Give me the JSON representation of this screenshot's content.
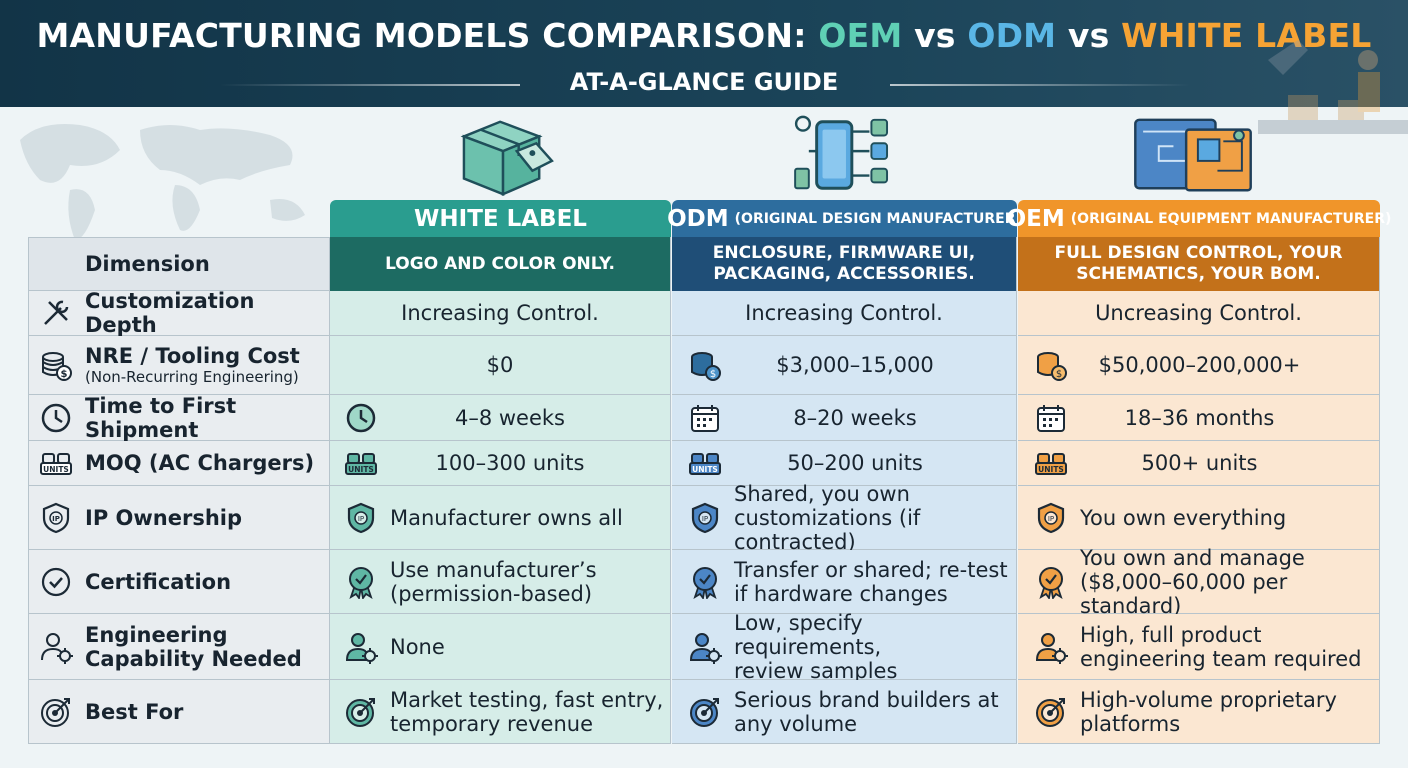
{
  "header": {
    "title_prefix": "MANUFACTURING MODELS COMPARISON: ",
    "title_oem": "OEM",
    "title_vs1": " vs ",
    "title_odm": "ODM",
    "title_vs2": " vs ",
    "title_wl": "WHITE LABEL",
    "subtitle": "AT-A-GLANCE GUIDE"
  },
  "colors": {
    "header_bg": "#123447",
    "white_label": "#2a9d8f",
    "odm": "#2d6d9e",
    "oem": "#f0952a"
  },
  "columns": {
    "white_label": {
      "name": "WHITE LABEL",
      "subtitle": "LOGO AND COLOR ONLY.",
      "icon": "box-with-tag-icon"
    },
    "odm": {
      "name": "ODM",
      "full": "(ORIGINAL DESIGN MANUFACTURER)",
      "subtitle": "ENCLOSURE, FIRMWARE UI, PACKAGING, ACCESSORIES.",
      "icon": "phone-components-icon"
    },
    "oem": {
      "name": "OEM",
      "full": "(ORIGINAL EQUIPMENT MANUFACTURER)",
      "subtitle": "FULL DESIGN CONTROL, YOUR SCHEMATICS, YOUR BOM.",
      "icon": "blueprint-icon"
    }
  },
  "table": {
    "dimension_header": "Dimension",
    "rows": [
      {
        "dimension": "Customization Depth",
        "icon": "tools-icon",
        "white_label": "Increasing Control.",
        "odm": "Increasing Control.",
        "oem": "Uncreasing Control."
      },
      {
        "dimension": "NRE / Tooling Cost",
        "note": "(Non-Recurring Engineering)",
        "icon": "coins-icon",
        "white_label": "$0",
        "odm": "$3,000–15,000",
        "oem": "$50,000–200,000+"
      },
      {
        "dimension": "Time to First Shipment",
        "icon": "clock-icon",
        "white_label": "4–8 weeks",
        "odm": "8–20 weeks",
        "oem": "18–36 months"
      },
      {
        "dimension": "MOQ (AC Chargers)",
        "icon": "units-icon",
        "white_label": "100–300 units",
        "odm": "50–200 units",
        "oem": "500+ units"
      },
      {
        "dimension": "IP Ownership",
        "icon": "shield-ip-icon",
        "white_label": "Manufacturer owns all",
        "odm_1": "Shared, you own",
        "odm_2": "customizations (if contracted)",
        "oem": "You own everything"
      },
      {
        "dimension": "Certification",
        "icon": "check-circle-icon",
        "white_label_1": "Use manufacturer’s",
        "white_label_2": "(permission-based)",
        "odm_1": "Transfer or shared; re-test",
        "odm_2": "if hardware changes",
        "oem_1": "You own and manage",
        "oem_2": "($8,000–60,000 per standard)"
      },
      {
        "dimension_1": "Engineering",
        "dimension_2": "Capability Needed",
        "icon": "engineer-icon",
        "white_label": "None",
        "odm_1": "Low, specify requirements,",
        "odm_2": "review samples",
        "oem_1": "High, full product",
        "oem_2": "engineering team required"
      },
      {
        "dimension": "Best For",
        "icon": "target-icon",
        "white_label_1": "Market testing, fast entry,",
        "white_label_2": "temporary revenue",
        "odm_1": "Serious brand builders at",
        "odm_2": "any volume",
        "oem_1": "High-volume proprietary",
        "oem_2": "platforms"
      }
    ]
  },
  "units_badge": "UNITS",
  "ip_badge": "IP"
}
